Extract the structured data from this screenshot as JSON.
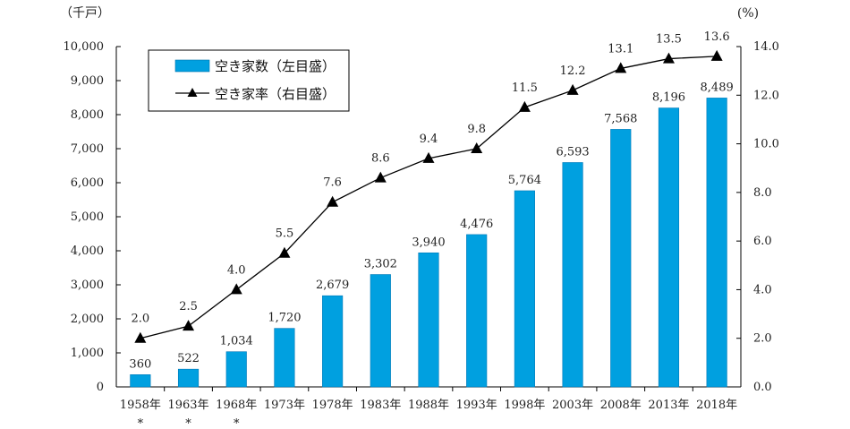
{
  "chart_data": {
    "type": "bar+line",
    "categories": [
      "1958年",
      "1963年",
      "1968年",
      "1973年",
      "1978年",
      "1983年",
      "1988年",
      "1993年",
      "1998年",
      "2003年",
      "2008年",
      "2013年",
      "2018年"
    ],
    "category_marks": [
      "*",
      "*",
      "*",
      "",
      "",
      "",
      "",
      "",
      "",
      "",
      "",
      "",
      ""
    ],
    "series": [
      {
        "name": "空き家数（左目盛）",
        "type": "bar",
        "axis": "left",
        "color": "#00a0e0",
        "values": [
          360,
          522,
          1034,
          1720,
          2679,
          3302,
          3940,
          4476,
          5764,
          6593,
          7568,
          8196,
          8489
        ],
        "labels": [
          "360",
          "522",
          "1,034",
          "1,720",
          "2,679",
          "3,302",
          "3,940",
          "4,476",
          "5,764",
          "6,593",
          "7,568",
          "8,196",
          "8,489"
        ]
      },
      {
        "name": "空き家率（右目盛）",
        "type": "line",
        "axis": "right",
        "marker": "triangle",
        "color": "#000000",
        "values": [
          2.0,
          2.5,
          4.0,
          5.5,
          7.6,
          8.6,
          9.4,
          9.8,
          11.5,
          12.2,
          13.1,
          13.5,
          13.6
        ],
        "labels": [
          "2.0",
          "2.5",
          "4.0",
          "5.5",
          "7.6",
          "8.6",
          "9.4",
          "9.8",
          "11.5",
          "12.2",
          "13.1",
          "13.5",
          "13.6"
        ]
      }
    ],
    "y_left": {
      "unit": "（千戸）",
      "ylim": [
        0,
        10000
      ],
      "ticks": [
        0,
        1000,
        2000,
        3000,
        4000,
        5000,
        6000,
        7000,
        8000,
        9000,
        10000
      ],
      "tick_labels": [
        "0",
        "1,000",
        "2,000",
        "3,000",
        "4,000",
        "5,000",
        "6,000",
        "7,000",
        "8,000",
        "9,000",
        "10,000"
      ]
    },
    "y_right": {
      "unit": "(%)",
      "ylim": [
        0,
        14
      ],
      "ticks": [
        0,
        2,
        4,
        6,
        8,
        10,
        12,
        14
      ],
      "tick_labels": [
        "0.0",
        "2.0",
        "4.0",
        "6.0",
        "8.0",
        "10.0",
        "12.0",
        "14.0"
      ]
    },
    "legend": {
      "placement": "top-left",
      "entries": [
        "空き家数（左目盛）",
        "空き家率（右目盛）"
      ]
    },
    "grid": false
  }
}
